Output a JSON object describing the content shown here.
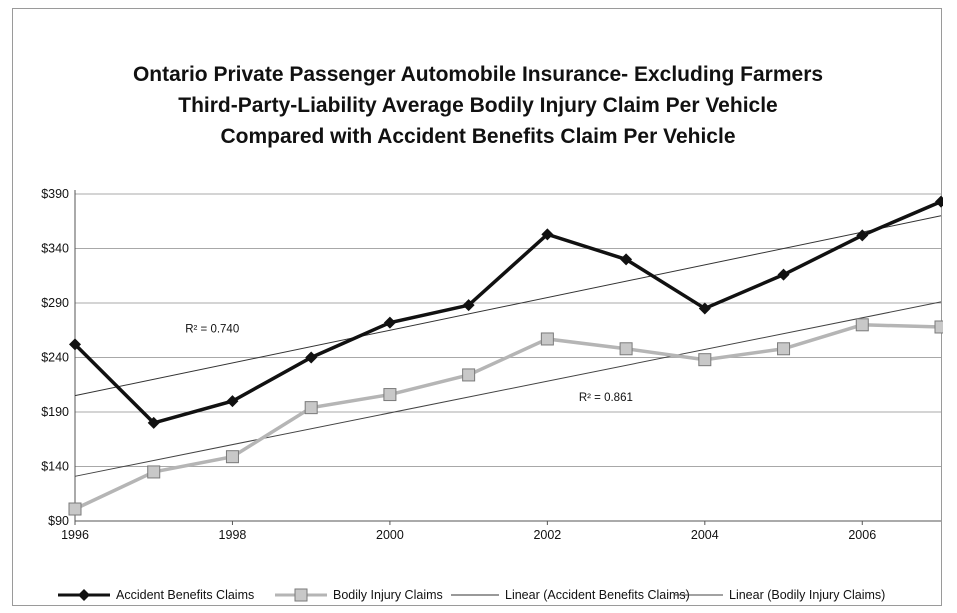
{
  "chart_data": {
    "type": "line",
    "title_lines": [
      "Ontario Private Passenger Automobile Insurance- Excluding Farmers",
      "Third-Party-Liability Average Bodily Injury Claim Per Vehicle",
      "Compared with Accident Benefits Claim Per Vehicle"
    ],
    "x": [
      1996,
      1997,
      1998,
      1999,
      2000,
      2001,
      2002,
      2003,
      2004,
      2005,
      2006,
      2007
    ],
    "xlim": [
      1996,
      2007
    ],
    "x_ticks": [
      1996,
      1998,
      2000,
      2002,
      2004,
      2006
    ],
    "x_tick_labels": [
      "1996",
      "1998",
      "2000",
      "2002",
      "2004",
      "2006"
    ],
    "ylim": [
      90,
      390
    ],
    "y_ticks": [
      90,
      140,
      190,
      240,
      290,
      340,
      390
    ],
    "y_tick_labels": [
      "$90",
      "$140",
      "$190",
      "$240",
      "$290",
      "$340",
      "$390"
    ],
    "grid": true,
    "legend_position": "bottom",
    "series": [
      {
        "name": "Accident Benefits Claims",
        "color": "#111111",
        "marker": "diamond",
        "values": [
          252,
          180,
          200,
          240,
          272,
          288,
          353,
          330,
          285,
          316,
          352,
          383
        ]
      },
      {
        "name": "Bodily Injury Claims",
        "color": "#b5b5b5",
        "marker": "square",
        "values": [
          101,
          135,
          149,
          194,
          206,
          224,
          257,
          248,
          238,
          248,
          270,
          268
        ]
      }
    ],
    "trendlines": [
      {
        "name": "Linear (Accident Benefits Claims)",
        "color": "#333333",
        "start": [
          1996,
          205
        ],
        "end": [
          2007,
          370
        ],
        "r2_label": "R² = 0.740",
        "r2_at": [
          1997.4,
          263
        ]
      },
      {
        "name": "Linear (Bodily Injury Claims)",
        "color": "#444444",
        "start": [
          1996,
          131
        ],
        "end": [
          2007,
          291
        ],
        "r2_label": "R² = 0.861",
        "r2_at": [
          2002.4,
          200
        ]
      }
    ]
  }
}
